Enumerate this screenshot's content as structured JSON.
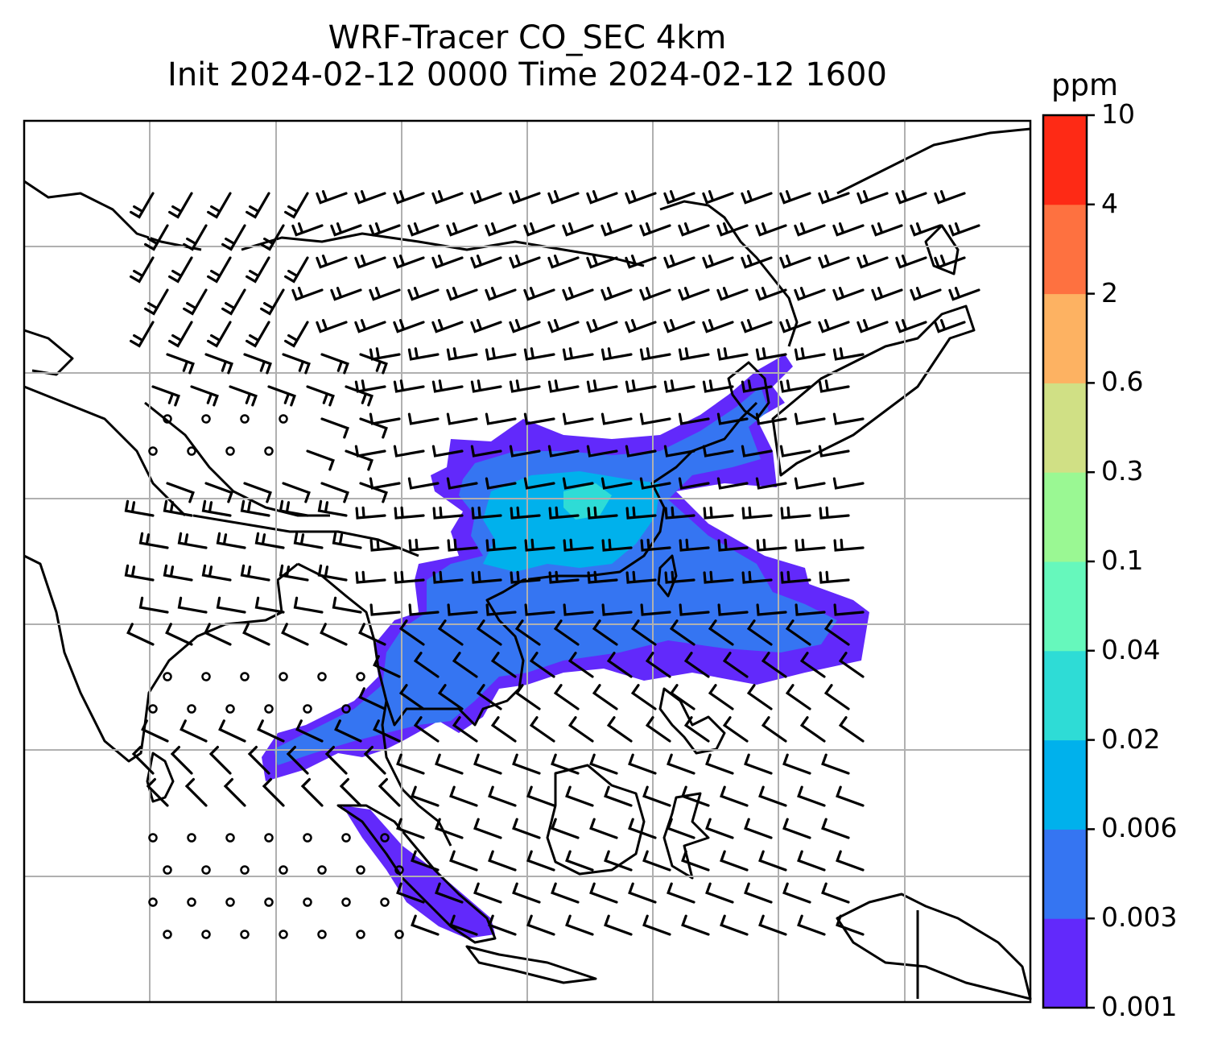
{
  "title": {
    "line1": "WRF-Tracer CO_SEC 4km",
    "line2": "Init 2024-02-12 0000 Time 2024-02-12 1600"
  },
  "colorbar": {
    "units": "ppm",
    "levels": [
      "0.001",
      "0.003",
      "0.006",
      "0.02",
      "0.04",
      "0.1",
      "0.3",
      "0.6",
      "2",
      "4",
      "10"
    ],
    "colors": [
      "#6229fb",
      "#3575f2",
      "#00b1ec",
      "#2edcd6",
      "#66f8bc",
      "#9af893",
      "#d0e085",
      "#fdb262",
      "#fe7140",
      "#fe2a15"
    ]
  },
  "style": {
    "coastline_color": "#000000",
    "gridline_color": "#b0b0b0",
    "barb_color": "#000000"
  }
}
